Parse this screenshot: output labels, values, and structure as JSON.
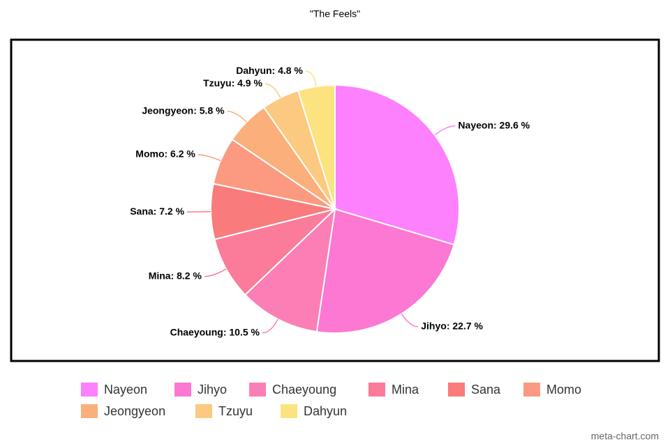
{
  "chart_data": {
    "type": "pie",
    "title": "\"The Feels\"",
    "categories": [
      "Nayeon",
      "Jihyo",
      "Chaeyoung",
      "Mina",
      "Sana",
      "Momo",
      "Jeongyeon",
      "Tzuyu",
      "Dahyun"
    ],
    "values": [
      29.6,
      22.7,
      10.5,
      8.2,
      7.2,
      6.2,
      5.8,
      4.9,
      4.8
    ],
    "value_labels": [
      "Nayeon: 29.6 %",
      "Jihyo: 22.7 %",
      "Chaeyoung: 10.5 %",
      "Mina: 8.2 %",
      "Sana: 7.2 %",
      "Momo: 6.2 %",
      "Jeongyeon: 5.8 %",
      "Tzuyu: 4.9 %",
      "Dahyun: 4.8 %"
    ],
    "colors": [
      "#fd80fd",
      "#fc78d2",
      "#fb7fb4",
      "#fb7b9a",
      "#f97b7b",
      "#fb9a80",
      "#fbb07b",
      "#fbc97f",
      "#fde380"
    ],
    "legend": "bottom",
    "credit": "meta-chart.com"
  }
}
